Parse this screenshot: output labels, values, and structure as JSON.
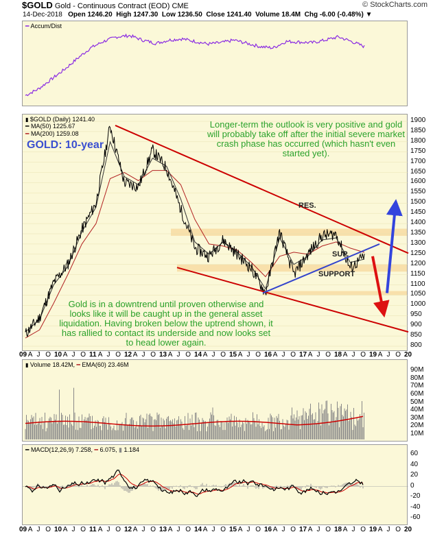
{
  "header": {
    "symbol": "$GOLD",
    "name": "Gold - Continuous Contract (EOD)",
    "exchange": "CME",
    "brand": "© StockCharts.com",
    "date": "14-Dec-2018",
    "open": "Open 1246.20",
    "high": "High 1247.30",
    "low": "Low 1236.50",
    "close": "Close 1241.40",
    "volume": "Volume 18.4M",
    "chg": "Chg -6.00 (-0.48%)",
    "down_marker": "▼"
  },
  "accum": {
    "label": "Accum/Dist"
  },
  "price": {
    "legend_main": "$GOLD (Daily) 1241.40",
    "legend_ma50": "MA(50) 1225.67",
    "legend_ma200": "MA(200) 1259.08",
    "title": "GOLD: 10-year",
    "anno_top": "Longer-term the outlook is very positive and gold will probably take off after the initial severe market crash phase has occurred (which hasn't even started yet).",
    "anno_bottom": "Gold is in a downtrend until proven otherwise and looks like it will be caught up in the general asset liquidation. Having broken below the uptrend shown, it has rallied to contact its underside and now looks set to head lower again.",
    "res_label": "RES.",
    "sup_label": "SUP.",
    "support_label": "SUPPORT",
    "y_ticks": [
      "1900",
      "1850",
      "1800",
      "1750",
      "1700",
      "1650",
      "1600",
      "1550",
      "1500",
      "1450",
      "1400",
      "1350",
      "1300",
      "1250",
      "1200",
      "1150",
      "1100",
      "1050",
      "1000",
      "950",
      "900",
      "850",
      "800"
    ]
  },
  "volume": {
    "legend_a": "Volume 18.42M,",
    "legend_b": "EMA(60) 23.46M",
    "y_ticks": [
      "90M",
      "80M",
      "70M",
      "60M",
      "50M",
      "40M",
      "30M",
      "20M",
      "10M"
    ]
  },
  "macd": {
    "legend_a": "MACD(12,26,9)",
    "legend_b": "7.258,",
    "legend_c": "6.075,",
    "legend_d": "1.184",
    "y_ticks": [
      "60",
      "40",
      "20",
      "0",
      "-20",
      "-40",
      "-60"
    ]
  },
  "x_axis": [
    "09",
    "A",
    "J",
    "O",
    "10",
    "A",
    "J",
    "O",
    "11",
    "A",
    "J",
    "O",
    "12",
    "A",
    "J",
    "O",
    "13",
    "A",
    "J",
    "O",
    "14",
    "A",
    "J",
    "O",
    "15",
    "A",
    "J",
    "O",
    "16",
    "A",
    "J",
    "O",
    "17",
    "A",
    "J",
    "O",
    "18",
    "A",
    "J",
    "O",
    "19",
    "A",
    "J",
    "O",
    "20"
  ],
  "colors": {
    "panel": "#fbf8d8",
    "price": "#000000",
    "ma": "#b22222",
    "trend": "#cc0000",
    "uptrend": "#3344cc",
    "zone": "#f8d9a0",
    "annotation": "#2aa12a",
    "accum": "#8a2be2"
  },
  "chart_data": [
    {
      "type": "line",
      "title": "Accum/Dist",
      "series": [
        {
          "name": "Accum/Dist",
          "values": [
            0.05,
            0.15,
            0.3,
            0.45,
            0.62,
            0.78,
            0.88,
            0.95,
            0.97,
            0.9,
            0.85,
            0.9,
            0.92,
            0.88,
            0.84,
            0.86,
            0.9,
            0.85,
            0.8,
            0.78,
            0.88,
            0.87,
            0.86,
            0.9,
            0.95,
            0.88,
            0.8
          ]
        }
      ]
    },
    {
      "type": "line",
      "title": "$GOLD (Daily) 1241.40",
      "x": [
        "2009-01",
        "2009-07",
        "2010-01",
        "2010-07",
        "2011-01",
        "2011-07",
        "2011-09",
        "2012-01",
        "2012-07",
        "2012-10",
        "2013-01",
        "2013-04",
        "2013-07",
        "2014-01",
        "2014-07",
        "2015-01",
        "2015-07",
        "2015-12",
        "2016-07",
        "2017-01",
        "2017-07",
        "2018-01",
        "2018-04",
        "2018-08",
        "2018-12"
      ],
      "series": [
        {
          "name": "$GOLD (Daily) 1241.40",
          "values": [
            860,
            940,
            1110,
            1200,
            1370,
            1500,
            1880,
            1600,
            1580,
            1760,
            1670,
            1470,
            1280,
            1240,
            1320,
            1250,
            1180,
            1060,
            1360,
            1150,
            1250,
            1340,
            1350,
            1180,
            1241
          ]
        },
        {
          "name": "MA(50) 1225.67",
          "values": [
            870,
            930,
            1100,
            1190,
            1360,
            1480,
            1800,
            1630,
            1590,
            1720,
            1680,
            1520,
            1310,
            1250,
            1310,
            1260,
            1190,
            1080,
            1330,
            1200,
            1240,
            1320,
            1330,
            1210,
            1226
          ]
        },
        {
          "name": "MA(200) 1259.08",
          "values": [
            840,
            880,
            1010,
            1150,
            1300,
            1400,
            1620,
            1650,
            1610,
            1660,
            1660,
            1590,
            1420,
            1300,
            1290,
            1270,
            1210,
            1140,
            1240,
            1260,
            1250,
            1290,
            1310,
            1280,
            1259
          ]
        }
      ],
      "ylim": [
        780,
        1920
      ]
    },
    {
      "type": "bar",
      "title": "Volume 18.42M, EMA(60) 23.46M",
      "ylim": [
        0,
        90
      ]
    },
    {
      "type": "line",
      "title": "MACD(12,26,9) 7.258, 6.075, 1.184",
      "ylim": [
        -70,
        70
      ]
    }
  ]
}
